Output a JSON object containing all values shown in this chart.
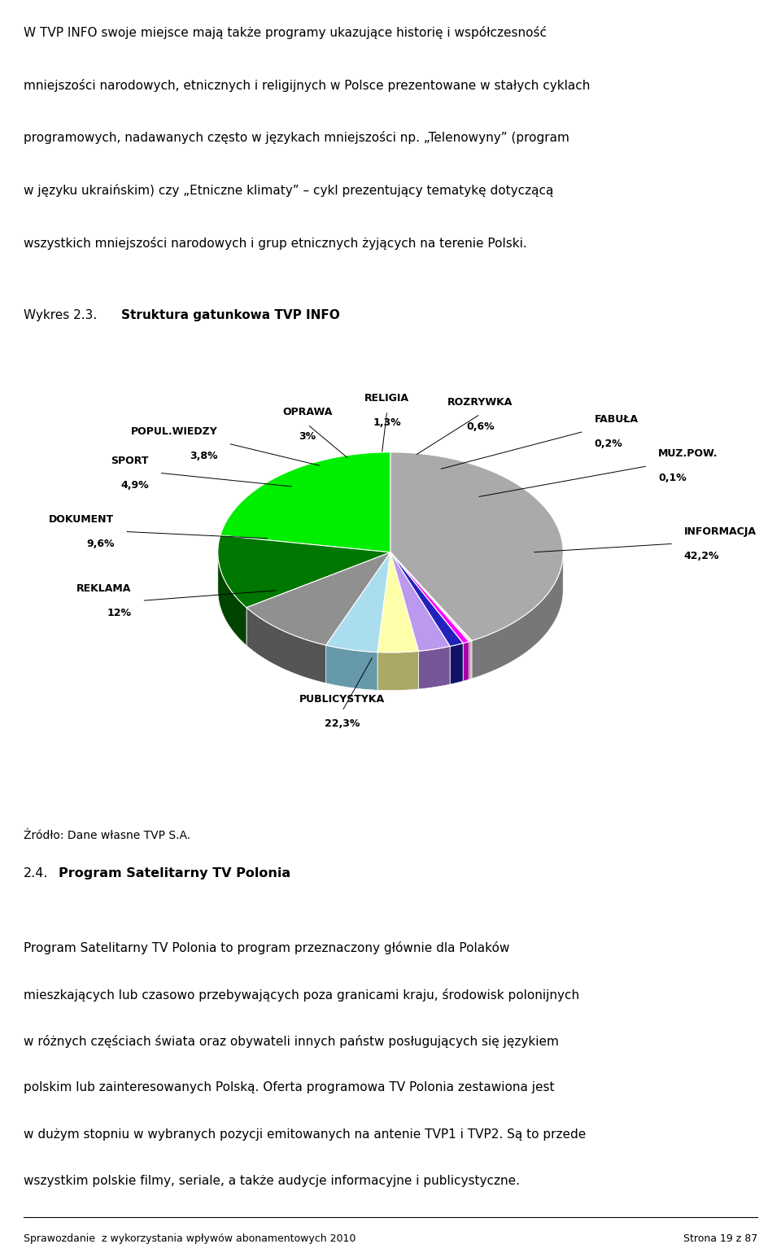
{
  "labels": [
    "INFORMACJA",
    "MUZ.POW.",
    "FABUŁA",
    "ROZRYWKA",
    "RELIGIA",
    "OPRAWA",
    "POPUL.WIEDZY",
    "SPORT",
    "DOKUMENT",
    "REKLAMA",
    "PUBLICYSTYKA"
  ],
  "values": [
    42.2,
    0.1,
    0.2,
    0.6,
    1.3,
    3.0,
    3.8,
    4.9,
    9.6,
    12.0,
    22.3
  ],
  "label_values": [
    "42,2%",
    "0,1%",
    "0,2%",
    "0,6%",
    "1,3%",
    "3%",
    "3,8%",
    "4,9%",
    "9,6%",
    "12%",
    "22,3%"
  ],
  "colors_top": [
    "#AAAAAA",
    "#FFFF00",
    "#FFBBCC",
    "#FF00FF",
    "#2222BB",
    "#BB99EE",
    "#FFFFAA",
    "#AADDEE",
    "#909090",
    "#007700",
    "#00EE00"
  ],
  "colors_side": [
    "#777777",
    "#AAAA00",
    "#AA6677",
    "#AA00AA",
    "#111166",
    "#775599",
    "#AAAA66",
    "#6699AA",
    "#555555",
    "#004400",
    "#009900"
  ],
  "source": "Źródło: Dane własne TVP S.A.",
  "bg_color": "#FFFFFF",
  "chart_title_prefix": "Wykres 2.3.",
  "chart_title_bold": "Struktura gatunkowa TVP INFO",
  "footer_left": "Sprawozdanie  z wykorzystania wpływów abonamentowych 2010",
  "footer_right": "Strona 19 z 87"
}
